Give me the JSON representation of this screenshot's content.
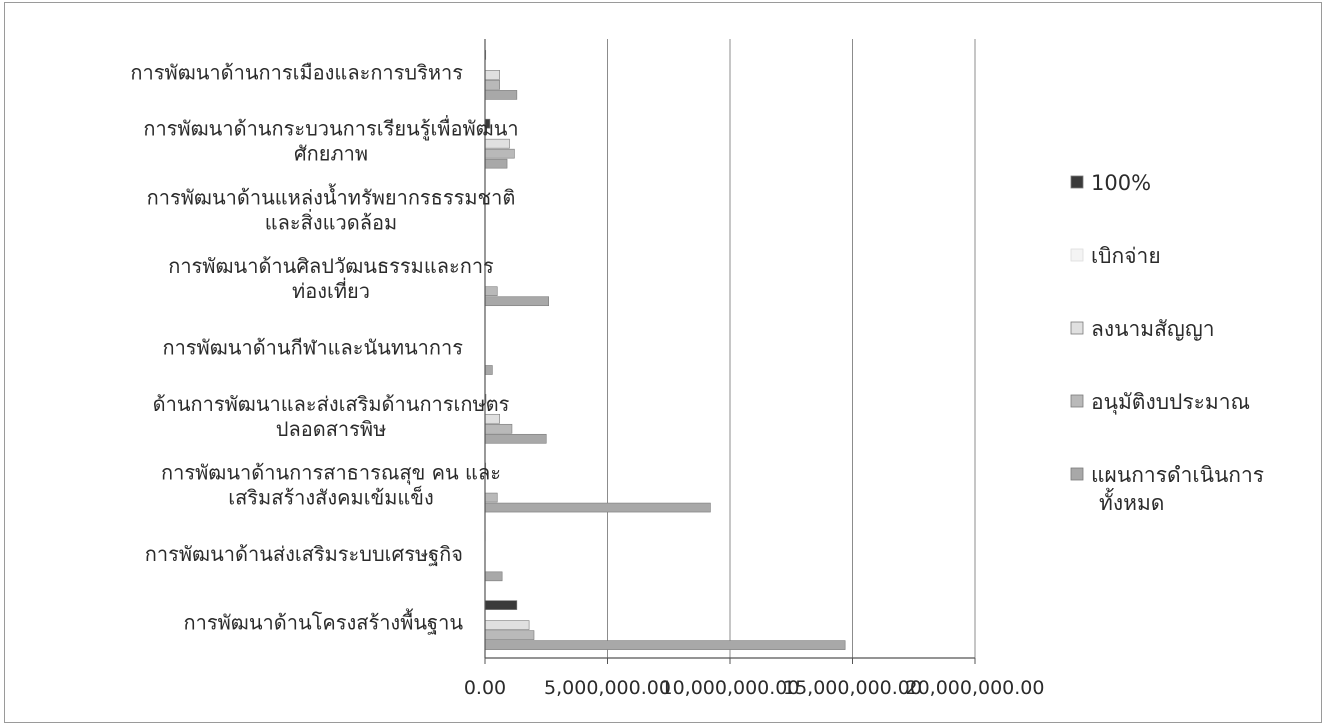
{
  "chart_data": {
    "type": "bar",
    "orientation": "horizontal",
    "categories": [
      [
        "การพัฒนาด้านการเมืองและการบริหาร"
      ],
      [
        "การพัฒนาด้านกระบวนการเรียนรู้เพื่อพัฒนา",
        "ศักยภาพ"
      ],
      [
        "การพัฒนาด้านแหล่งน้ำทรัพยากรธรรมชาติ",
        "และสิ่งแวดล้อม"
      ],
      [
        "การพัฒนาด้านศิลปวัฒนธรรมและการ",
        "ท่องเที่ยว"
      ],
      [
        "การพัฒนาด้านกีฬาและนันทนาการ"
      ],
      [
        "ด้านการพัฒนาและส่งเสริมด้านการเกษตร",
        "ปลอดสารพิษ"
      ],
      [
        "การพัฒนาด้านการสาธารณสุข คน และ",
        "เสริมสร้างสังคมเข้มแข็ง"
      ],
      [
        "การพัฒนาด้านส่งเสริมระบบเศรษฐกิจ"
      ],
      [
        "การพัฒนาด้านโครงสร้างพื้นฐาน"
      ]
    ],
    "series": [
      {
        "name": "100%",
        "color": "#3a3a3a",
        "values": [
          30000,
          200000,
          0,
          0,
          0,
          40000,
          30000,
          10000,
          1300000
        ]
      },
      {
        "name": "เบิกจ่าย",
        "color": "#f4f4f4",
        "values": [
          0,
          0,
          0,
          0,
          0,
          0,
          0,
          0,
          0
        ]
      },
      {
        "name": "ลงนามสัญญา",
        "color": "#e0e0e0",
        "values": [
          600000,
          1000000,
          0,
          0,
          0,
          600000,
          0,
          0,
          1800000
        ]
      },
      {
        "name": "อนุมัติงบประมาณ",
        "color": "#b9b9b9",
        "values": [
          600000,
          1200000,
          0,
          500000,
          0,
          1100000,
          500000,
          0,
          2000000
        ]
      },
      {
        "name": "แผนการดำเนินการ",
        "name_line2": "ทั้งหมด",
        "color": "#a8a8a8",
        "values": [
          1300000,
          900000,
          0,
          2600000,
          300000,
          2500000,
          9200000,
          700000,
          14700000
        ]
      }
    ],
    "xlim": [
      0,
      20000000
    ],
    "xticks": [
      0,
      5000000,
      10000000,
      15000000,
      20000000
    ],
    "xtick_labels": [
      "0.00",
      "5,000,000.00",
      "10,000,000.00",
      "15,000,000.00",
      "20,000,000.00"
    ],
    "grid": "vertical",
    "legend_position": "right"
  }
}
